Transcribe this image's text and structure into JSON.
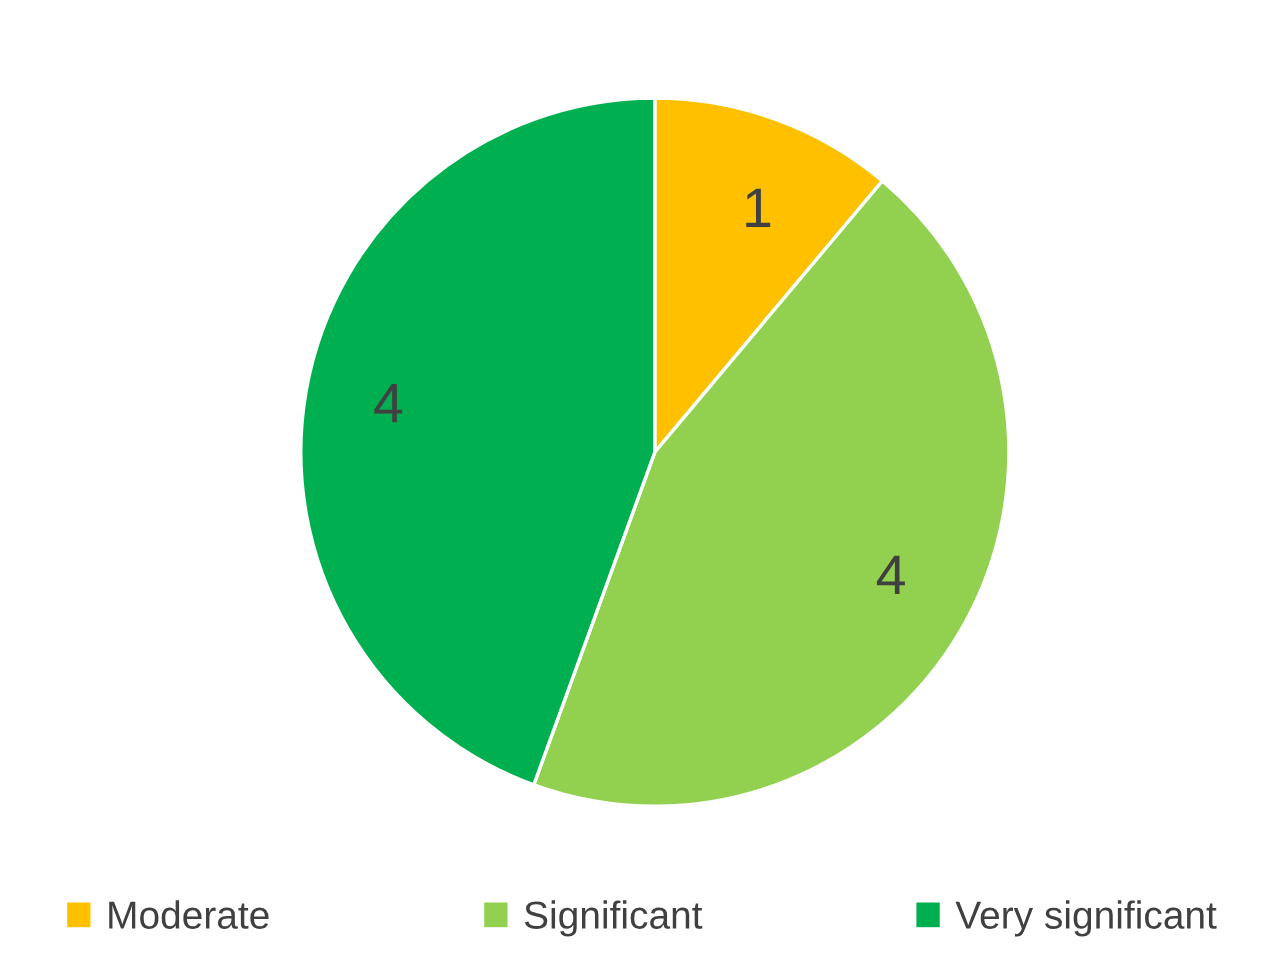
{
  "chart_data": {
    "type": "pie",
    "categories": [
      "Moderate",
      "Significant",
      "Very significant"
    ],
    "values": [
      1,
      4,
      4
    ],
    "colors": [
      "#ffc000",
      "#92d050",
      "#00b050"
    ],
    "data_labels": true,
    "legend": "bottom"
  }
}
